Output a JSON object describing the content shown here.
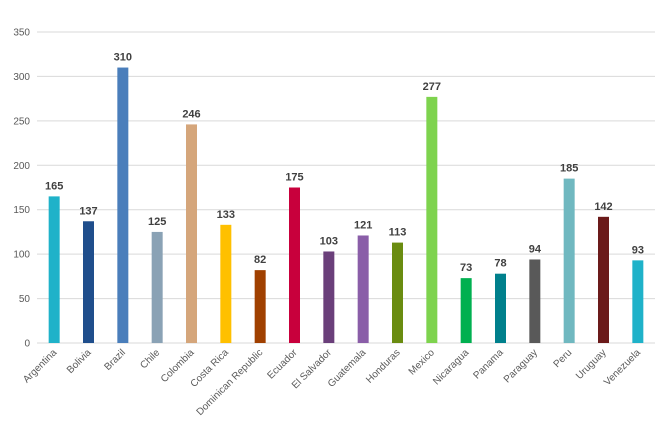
{
  "chart_data": {
    "type": "bar",
    "title": "",
    "xlabel": "",
    "ylabel": "",
    "ylim": [
      0,
      350
    ],
    "yticks": [
      0,
      50,
      100,
      150,
      200,
      250,
      300,
      350
    ],
    "grid": true,
    "legend": "none",
    "categories": [
      "Argentina",
      "Bolivia",
      "Brazil",
      "Chile",
      "Colombia",
      "Costa Rica",
      "Dominican Republic",
      "Ecuador",
      "El Salvador",
      "Guatemala",
      "Honduras",
      "Mexico",
      "Nicaragua",
      "Panama",
      "Paraguay",
      "Peru",
      "Uruguay",
      "Venezuela"
    ],
    "values": [
      165,
      137,
      310,
      125,
      246,
      133,
      82,
      175,
      103,
      121,
      113,
      277,
      73,
      78,
      94,
      185,
      142,
      93
    ],
    "colors": [
      "#1fb2c9",
      "#1f4e8c",
      "#4a7ebb",
      "#8aa2b5",
      "#d5a67b",
      "#ffc000",
      "#a04000",
      "#c8003c",
      "#6a3f7a",
      "#8a5ea8",
      "#6a8c10",
      "#7ed34e",
      "#00b050",
      "#00808c",
      "#595959",
      "#70b8c0",
      "#6b1a1a",
      "#1fb2c9"
    ]
  }
}
